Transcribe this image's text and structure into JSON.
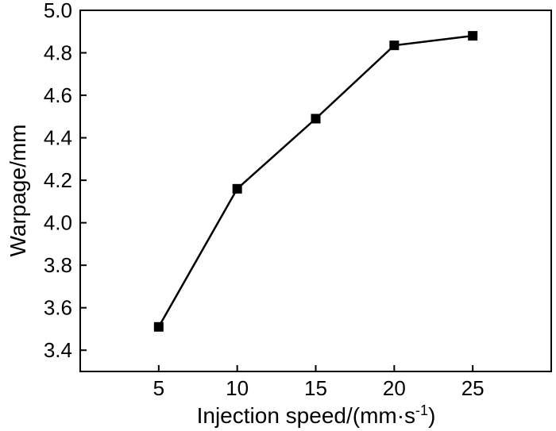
{
  "chart_data": {
    "type": "line",
    "title": "",
    "xlabel": "Injection speed/(mm·s",
    "xlabel_sup": "-1",
    "xlabel_close": ")",
    "ylabel": "Warpage/mm",
    "xlim": [
      0,
      30
    ],
    "ylim": [
      3.3,
      5.0
    ],
    "xticks": [
      5,
      10,
      15,
      20,
      25
    ],
    "xtick_labels": [
      "5",
      "10",
      "15",
      "20",
      "25"
    ],
    "yticks": [
      3.4,
      3.6,
      3.8,
      4.0,
      4.2,
      4.4,
      4.6,
      4.8,
      5.0
    ],
    "ytick_labels": [
      "3.4",
      "3.6",
      "3.8",
      "4.0",
      "4.2",
      "4.4",
      "4.6",
      "4.8",
      "5.0"
    ],
    "grid": false,
    "series": [
      {
        "name": "Warpage",
        "marker": "square",
        "color": "#000000",
        "x": [
          5,
          10,
          15,
          20,
          25
        ],
        "y": [
          3.51,
          4.16,
          4.49,
          4.835,
          4.88
        ]
      }
    ]
  }
}
